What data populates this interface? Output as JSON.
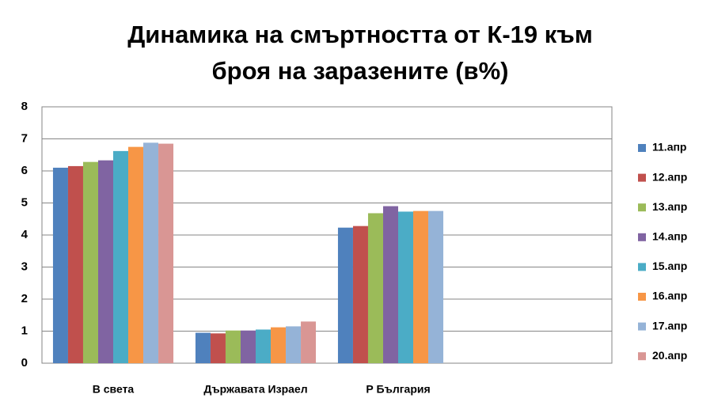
{
  "chart_data": {
    "type": "bar",
    "title": [
      "Динамика на смъртността от К-19 към",
      "броя на заразените (в%)"
    ],
    "categories": [
      "В света",
      "Държавата Израел",
      "Р България",
      null
    ],
    "series": [
      {
        "name": "11.апр",
        "color": "#4F81BD",
        "values": [
          6.1,
          0.95,
          4.23,
          null
        ]
      },
      {
        "name": "12.апр",
        "color": "#C0504D",
        "values": [
          6.15,
          0.93,
          4.28,
          null
        ]
      },
      {
        "name": "13.апр",
        "color": "#9BBB59",
        "values": [
          6.28,
          1.02,
          4.68,
          null
        ]
      },
      {
        "name": "14.апр",
        "color": "#8064A2",
        "values": [
          6.33,
          1.02,
          4.9,
          null
        ]
      },
      {
        "name": "15.апр",
        "color": "#4BACC6",
        "values": [
          6.62,
          1.05,
          4.73,
          null
        ]
      },
      {
        "name": "16.апр",
        "color": "#F79646",
        "values": [
          6.75,
          1.12,
          4.75,
          null
        ]
      },
      {
        "name": "17.апр",
        "color": "#95B3D7",
        "values": [
          6.88,
          1.15,
          4.75,
          null
        ]
      },
      {
        "name": "20.апр",
        "color": "#D99694",
        "values": [
          6.85,
          1.3,
          null,
          null
        ]
      }
    ],
    "ylim": [
      0,
      8
    ],
    "yticks": [
      0,
      1,
      2,
      3,
      4,
      5,
      6,
      7,
      8
    ],
    "grid": true,
    "legend": "right"
  }
}
